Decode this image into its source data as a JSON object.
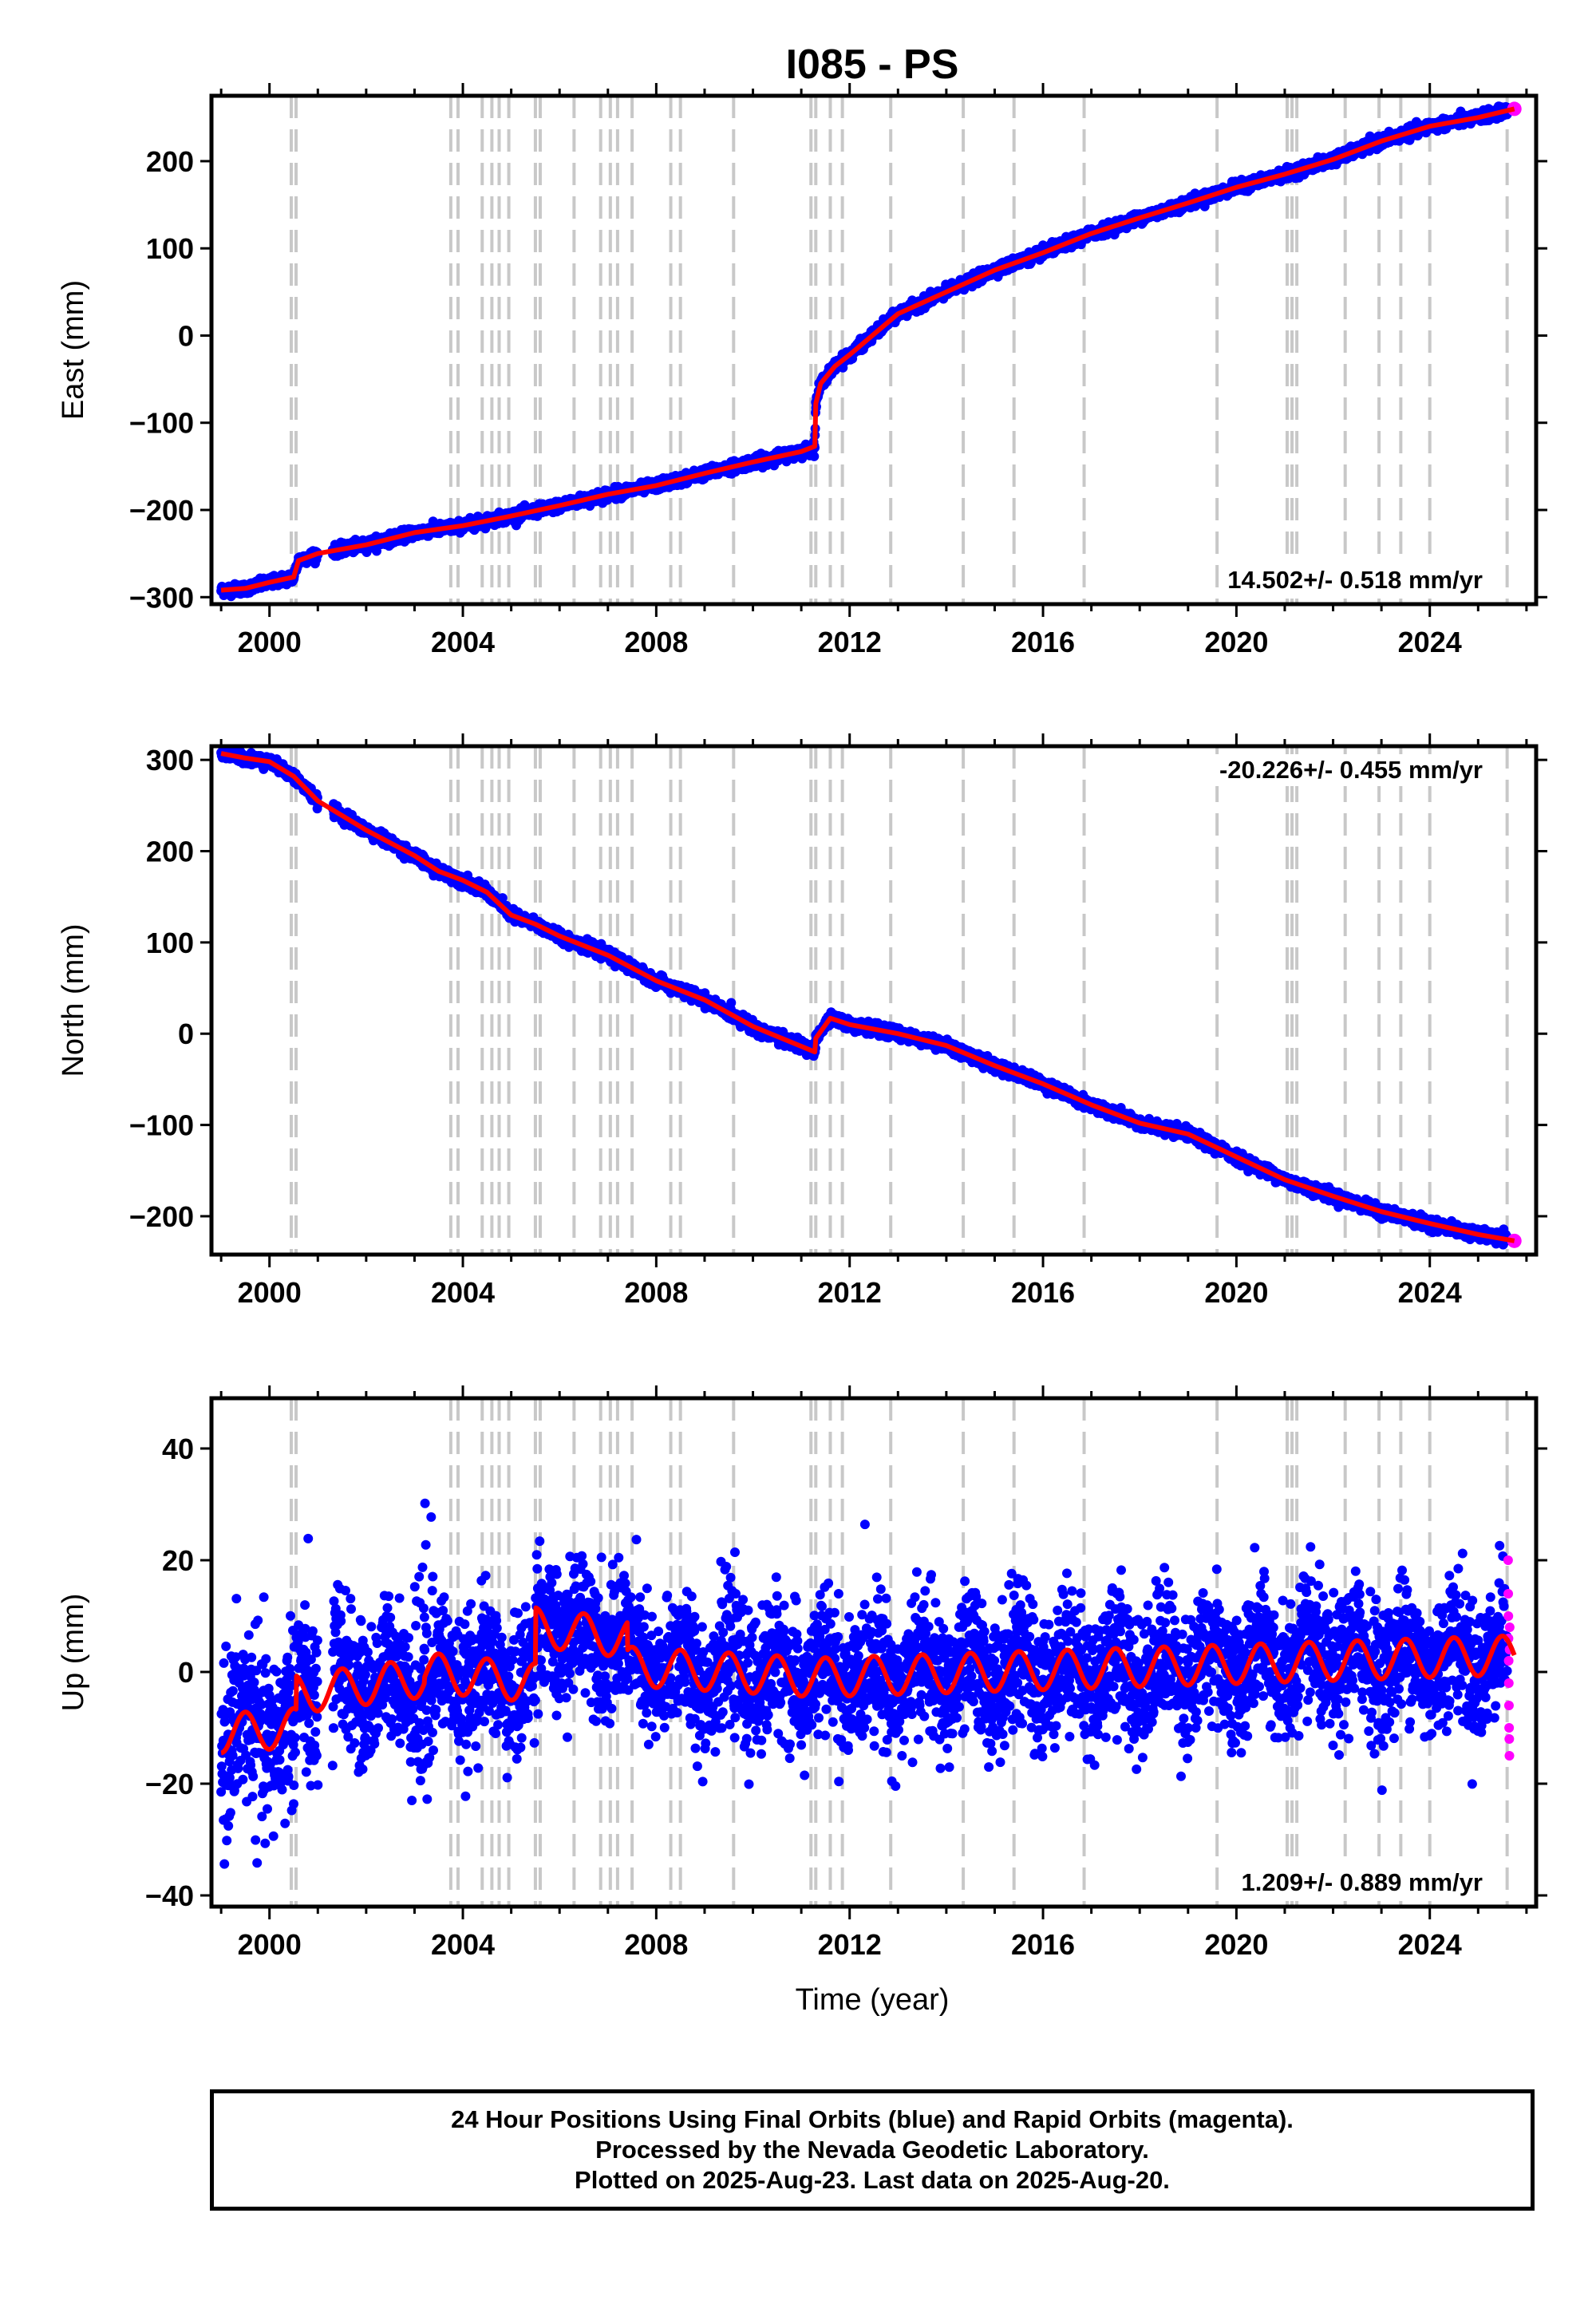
{
  "chart_data": {
    "type": "scatter",
    "title": "I085 - PS",
    "xlabel": "Time (year)",
    "x_range": [
      1998.8,
      2026.2
    ],
    "x_ticks": [
      2000,
      2004,
      2008,
      2012,
      2016,
      2020,
      2024
    ],
    "x_tick_labels": [
      "2000",
      "2004",
      "2008",
      "2012",
      "2016",
      "2020",
      "2024"
    ],
    "legend": "none",
    "colors": {
      "final_orbits": "#0000ff",
      "rapid_orbits": "#ff00ff",
      "model": "#ff0000",
      "event_lines": "#c8c8c8"
    },
    "event_lines": [
      2000.45,
      2000.55,
      2003.75,
      2003.9,
      2004.4,
      2004.6,
      2004.75,
      2004.95,
      2005.5,
      2005.6,
      2006.3,
      2006.85,
      2007.05,
      2007.2,
      2007.5,
      2008.3,
      2008.5,
      2009.6,
      2011.2,
      2011.3,
      2011.6,
      2011.85,
      2012.85,
      2014.35,
      2015.4,
      2016.85,
      2019.6,
      2021.05,
      2021.15,
      2021.25,
      2022.25,
      2022.95,
      2023.4,
      2024.0,
      2025.6
    ],
    "panels": [
      {
        "name": "east",
        "ylabel": "East (mm)",
        "ylim": [
          -308,
          275
        ],
        "y_ticks": [
          -300,
          -200,
          -100,
          0,
          100,
          200
        ],
        "y_tick_labels": [
          "−300",
          "−200",
          "−100",
          "0",
          "100",
          "200"
        ],
        "rate_text": "14.502+/- 0.518 mm/yr",
        "rate_position": "bottom-right",
        "model_points": [
          [
            1999.0,
            -292
          ],
          [
            1999.5,
            -290
          ],
          [
            2000.0,
            -283
          ],
          [
            2000.5,
            -277
          ],
          [
            2000.6,
            -258
          ],
          [
            2001.0,
            -250
          ],
          [
            2002.0,
            -240
          ],
          [
            2003.0,
            -226
          ],
          [
            2004.0,
            -218
          ],
          [
            2005.0,
            -207
          ],
          [
            2006.0,
            -195
          ],
          [
            2007.0,
            -182
          ],
          [
            2008.0,
            -172
          ],
          [
            2009.0,
            -158
          ],
          [
            2010.0,
            -145
          ],
          [
            2011.0,
            -133
          ],
          [
            2011.28,
            -127
          ],
          [
            2011.3,
            -78
          ],
          [
            2011.4,
            -55
          ],
          [
            2011.7,
            -35
          ],
          [
            2012.0,
            -22
          ],
          [
            2013.0,
            25
          ],
          [
            2014.0,
            50
          ],
          [
            2015.0,
            75
          ],
          [
            2016.0,
            95
          ],
          [
            2017.0,
            117
          ],
          [
            2018.0,
            135
          ],
          [
            2019.0,
            152
          ],
          [
            2020.0,
            170
          ],
          [
            2021.0,
            185
          ],
          [
            2022.0,
            202
          ],
          [
            2023.0,
            223
          ],
          [
            2024.0,
            240
          ],
          [
            2025.0,
            250
          ],
          [
            2025.75,
            260
          ]
        ],
        "noise_mm": 3
      },
      {
        "name": "north",
        "ylabel": "North (mm)",
        "ylim": [
          -242,
          315
        ],
        "y_ticks": [
          -200,
          -100,
          0,
          100,
          200,
          300
        ],
        "y_tick_labels": [
          "−200",
          "−100",
          "0",
          "100",
          "200",
          "300"
        ],
        "rate_text": "-20.226+/- 0.455 mm/yr",
        "rate_position": "top-right",
        "model_points": [
          [
            1999.0,
            307
          ],
          [
            1999.5,
            302
          ],
          [
            2000.0,
            298
          ],
          [
            2000.5,
            282
          ],
          [
            2001.0,
            255
          ],
          [
            2002.0,
            223
          ],
          [
            2003.0,
            195
          ],
          [
            2003.5,
            178
          ],
          [
            2004.0,
            168
          ],
          [
            2004.5,
            155
          ],
          [
            2005.0,
            130
          ],
          [
            2005.5,
            120
          ],
          [
            2006.0,
            107
          ],
          [
            2007.0,
            86
          ],
          [
            2008.0,
            58
          ],
          [
            2009.0,
            37
          ],
          [
            2010.0,
            8
          ],
          [
            2011.28,
            -20
          ],
          [
            2011.3,
            -5
          ],
          [
            2011.6,
            17
          ],
          [
            2012.0,
            10
          ],
          [
            2013.0,
            0
          ],
          [
            2014.0,
            -13
          ],
          [
            2015.0,
            -35
          ],
          [
            2016.0,
            -55
          ],
          [
            2017.0,
            -78
          ],
          [
            2018.0,
            -98
          ],
          [
            2019.0,
            -110
          ],
          [
            2020.0,
            -135
          ],
          [
            2021.0,
            -160
          ],
          [
            2022.0,
            -178
          ],
          [
            2023.0,
            -195
          ],
          [
            2024.0,
            -208
          ],
          [
            2025.0,
            -220
          ],
          [
            2025.75,
            -227
          ]
        ],
        "noise_mm": 3
      },
      {
        "name": "up",
        "ylabel": "Up (mm)",
        "ylim": [
          -42,
          49
        ],
        "y_ticks": [
          -40,
          -20,
          0,
          20,
          40
        ],
        "y_tick_labels": [
          "−40",
          "−20",
          "0",
          "20",
          "40"
        ],
        "rate_text": "1.209+/- 0.889 mm/yr",
        "rate_position": "bottom-right",
        "model_segments": [
          {
            "start": 1999.0,
            "end": 2000.55,
            "offset_start": -11,
            "offset_end": -10
          },
          {
            "start": 2000.55,
            "end": 2003.2,
            "offset_start": -4,
            "offset_end": -1
          },
          {
            "start": 2003.2,
            "end": 2005.5,
            "offset_start": 0,
            "offset_end": -2
          },
          {
            "start": 2005.5,
            "end": 2007.4,
            "offset_start": 8,
            "offset_end": 6
          },
          {
            "start": 2007.4,
            "end": 2011.3,
            "offset_start": 1,
            "offset_end": -1
          },
          {
            "start": 2011.3,
            "end": 2025.75,
            "offset_start": -1,
            "offset_end": 3
          }
        ],
        "seasonal_amplitude_mm": 3.5,
        "noise_mm": 6,
        "rapid_orbit_values": [
          20,
          14,
          10,
          6,
          2,
          -2,
          -6,
          -10,
          -12,
          -15,
          4,
          8
        ]
      }
    ],
    "footer_lines": [
      "24 Hour Positions Using Final Orbits (blue) and Rapid Orbits (magenta).",
      "Processed by the Nevada Geodetic Laboratory.",
      "Plotted on 2025-Aug-23. Last data on 2025-Aug-20."
    ]
  }
}
